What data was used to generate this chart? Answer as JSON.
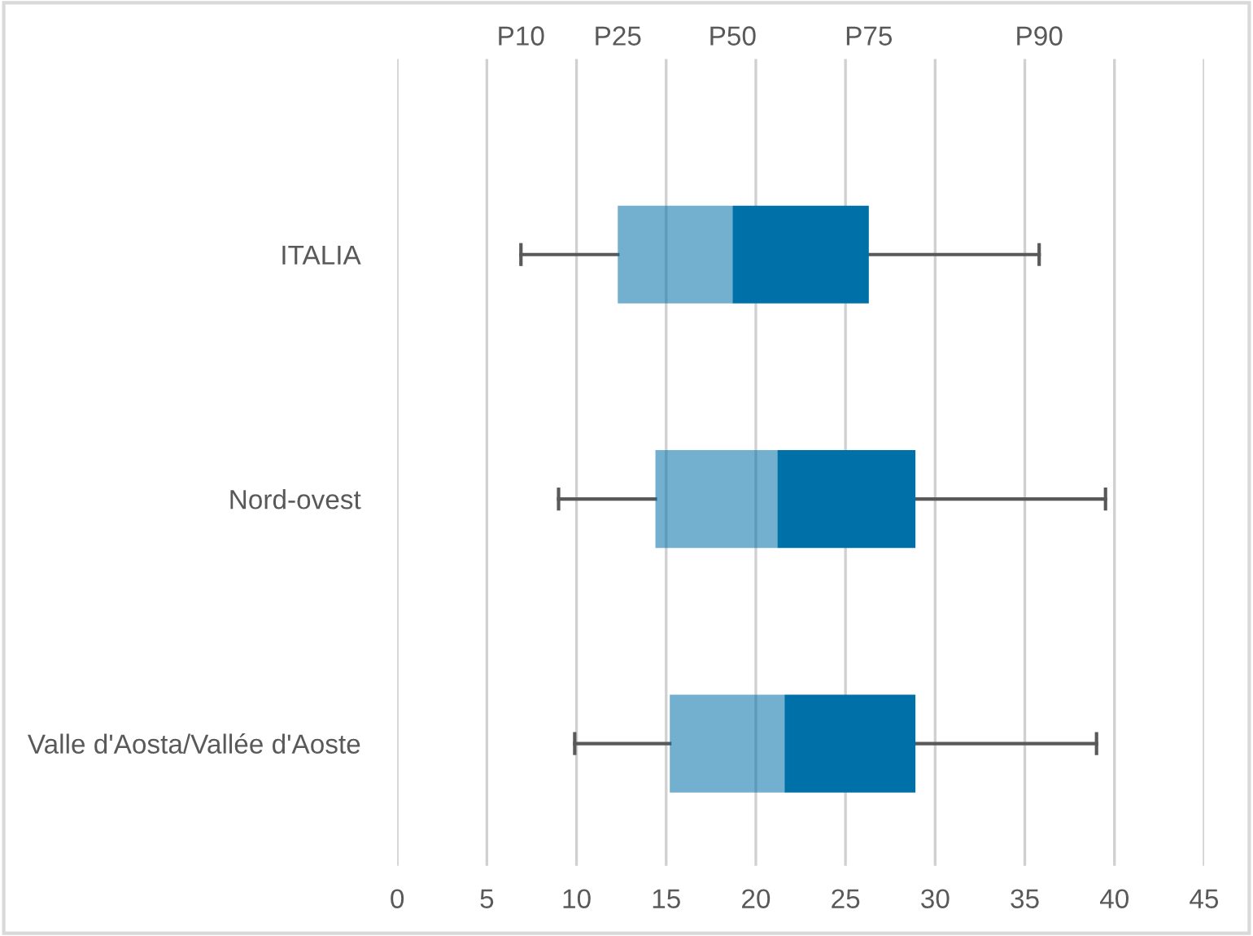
{
  "chart_data": {
    "type": "box",
    "orientation": "horizontal",
    "categories": [
      "ITALIA",
      "Nord-ovest",
      "Valle d'Aosta/Vallée d'Aoste"
    ],
    "series": [
      {
        "color": "#0070a8",
        "boxes": [
          {
            "low": 6.9,
            "q1": 12.3,
            "median": 18.7,
            "q3": 26.3,
            "high": 35.8
          },
          {
            "low": 9.0,
            "q1": 14.4,
            "median": 21.2,
            "q3": 28.9,
            "high": 39.5
          },
          {
            "low": 9.9,
            "q1": 15.2,
            "median": 21.6,
            "q3": 28.9,
            "high": 39.0
          }
        ]
      }
    ],
    "xlim": [
      0,
      45
    ],
    "xticks": [
      0,
      5,
      10,
      15,
      20,
      25,
      30,
      35,
      40,
      45
    ],
    "grid": "x",
    "annotations": [
      "P10",
      "P25",
      "P50",
      "P75",
      "P90"
    ]
  }
}
